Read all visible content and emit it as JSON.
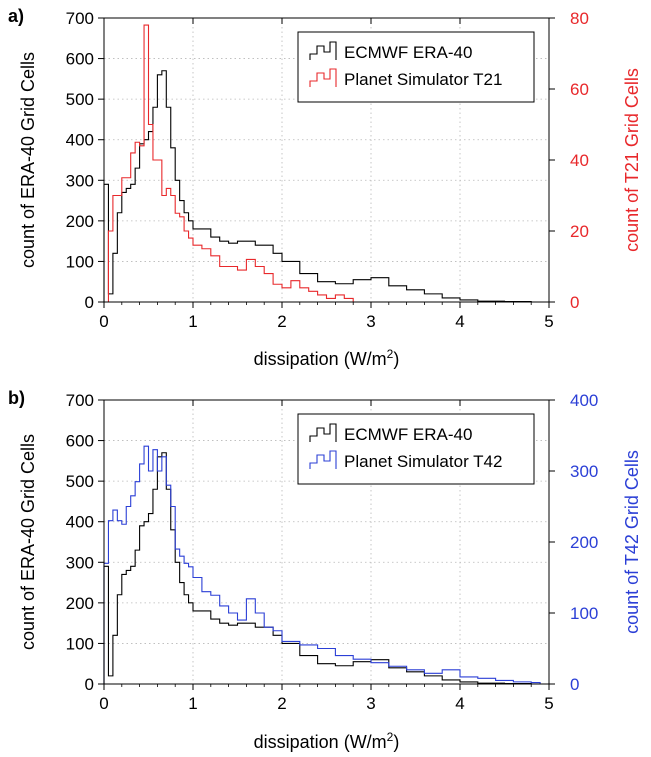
{
  "chart_data": [
    {
      "panel_label": "a)",
      "type": "line",
      "style": "step histogram",
      "xlabel": "dissipation (W/m",
      "xlabel_sup": "2",
      "xlabel_tail": ")",
      "ylabel": "count of ERA-40 Grid Cells",
      "y2label": "count of T21 Grid Cells",
      "xlim": [
        0,
        5
      ],
      "ylim": [
        0,
        700
      ],
      "y2lim": [
        0,
        80
      ],
      "xticks": [
        "0",
        "1",
        "2",
        "3",
        "4",
        "5"
      ],
      "yticks": [
        "0",
        "100",
        "200",
        "300",
        "400",
        "500",
        "600",
        "700"
      ],
      "y2ticks": [
        "0",
        "20",
        "40",
        "60",
        "80"
      ],
      "grid": true,
      "legend_position": "top-right",
      "right_axis_color": "#e8282b",
      "series": [
        {
          "name": "ECMWF ERA-40",
          "axis": "left",
          "color": "#000000",
          "x": [
            0.0,
            0.05,
            0.1,
            0.15,
            0.2,
            0.25,
            0.3,
            0.35,
            0.4,
            0.45,
            0.5,
            0.55,
            0.6,
            0.65,
            0.7,
            0.75,
            0.8,
            0.85,
            0.9,
            0.95,
            1.0,
            1.1,
            1.2,
            1.3,
            1.4,
            1.5,
            1.6,
            1.7,
            1.8,
            1.9,
            2.0,
            2.2,
            2.4,
            2.6,
            2.8,
            3.0,
            3.2,
            3.4,
            3.6,
            3.8,
            4.0,
            4.2,
            4.5,
            4.8
          ],
          "y": [
            290,
            20,
            120,
            220,
            270,
            280,
            290,
            330,
            390,
            400,
            420,
            480,
            560,
            570,
            480,
            380,
            300,
            250,
            220,
            200,
            180,
            180,
            160,
            150,
            145,
            150,
            150,
            140,
            140,
            120,
            100,
            70,
            50,
            45,
            55,
            60,
            40,
            30,
            20,
            10,
            5,
            2,
            1,
            0
          ]
        },
        {
          "name": "Planet Simulator T21",
          "axis": "right",
          "color": "#e8282b",
          "x": [
            0.0,
            0.05,
            0.1,
            0.15,
            0.2,
            0.25,
            0.3,
            0.35,
            0.4,
            0.45,
            0.5,
            0.55,
            0.6,
            0.65,
            0.7,
            0.75,
            0.8,
            0.85,
            0.9,
            0.95,
            1.0,
            1.1,
            1.2,
            1.3,
            1.4,
            1.5,
            1.6,
            1.7,
            1.8,
            1.9,
            2.0,
            2.1,
            2.2,
            2.3,
            2.4,
            2.5,
            2.6,
            2.7,
            2.8
          ],
          "y": [
            0,
            20,
            30,
            30,
            35,
            35,
            42,
            45,
            44,
            78,
            50,
            40,
            40,
            30,
            32,
            30,
            25,
            24,
            20,
            18,
            16,
            15,
            13,
            10,
            10,
            9,
            12,
            10,
            8,
            5,
            4,
            6,
            4,
            3,
            2,
            1,
            2,
            1,
            0
          ]
        }
      ]
    },
    {
      "panel_label": "b)",
      "type": "line",
      "style": "step histogram",
      "xlabel": "dissipation (W/m",
      "xlabel_sup": "2",
      "xlabel_tail": ")",
      "ylabel": "count of ERA-40 Grid Cells",
      "y2label": "count of T42 Grid Cells",
      "xlim": [
        0,
        5
      ],
      "ylim": [
        0,
        700
      ],
      "y2lim": [
        0,
        400
      ],
      "xticks": [
        "0",
        "1",
        "2",
        "3",
        "4",
        "5"
      ],
      "yticks": [
        "0",
        "100",
        "200",
        "300",
        "400",
        "500",
        "600",
        "700"
      ],
      "y2ticks": [
        "0",
        "100",
        "200",
        "300",
        "400"
      ],
      "grid": true,
      "legend_position": "top-right",
      "right_axis_color": "#2b3fd6",
      "series": [
        {
          "name": "ECMWF ERA-40",
          "axis": "left",
          "color": "#000000",
          "x": [
            0.0,
            0.05,
            0.1,
            0.15,
            0.2,
            0.25,
            0.3,
            0.35,
            0.4,
            0.45,
            0.5,
            0.55,
            0.6,
            0.65,
            0.7,
            0.75,
            0.8,
            0.85,
            0.9,
            0.95,
            1.0,
            1.1,
            1.2,
            1.3,
            1.4,
            1.5,
            1.6,
            1.7,
            1.8,
            1.9,
            2.0,
            2.2,
            2.4,
            2.6,
            2.8,
            3.0,
            3.2,
            3.4,
            3.6,
            3.8,
            4.0,
            4.2,
            4.5,
            4.8
          ],
          "y": [
            290,
            20,
            120,
            220,
            270,
            280,
            290,
            330,
            390,
            400,
            420,
            480,
            560,
            570,
            480,
            380,
            300,
            250,
            220,
            200,
            180,
            180,
            160,
            150,
            145,
            150,
            150,
            140,
            140,
            120,
            100,
            70,
            50,
            45,
            55,
            60,
            40,
            30,
            20,
            10,
            5,
            2,
            1,
            0
          ]
        },
        {
          "name": "Planet Simulator T42",
          "axis": "right",
          "color": "#2b3fd6",
          "x": [
            0.0,
            0.05,
            0.1,
            0.15,
            0.2,
            0.25,
            0.3,
            0.35,
            0.4,
            0.45,
            0.5,
            0.55,
            0.6,
            0.65,
            0.7,
            0.75,
            0.8,
            0.85,
            0.9,
            0.95,
            1.0,
            1.1,
            1.2,
            1.3,
            1.4,
            1.5,
            1.6,
            1.7,
            1.8,
            1.9,
            2.0,
            2.2,
            2.4,
            2.6,
            2.8,
            3.0,
            3.2,
            3.4,
            3.6,
            3.8,
            4.0,
            4.2,
            4.4,
            4.6,
            4.8
          ],
          "y": [
            170,
            230,
            245,
            230,
            225,
            250,
            265,
            285,
            310,
            335,
            300,
            330,
            300,
            320,
            280,
            250,
            190,
            180,
            170,
            165,
            150,
            130,
            125,
            110,
            100,
            90,
            120,
            100,
            80,
            75,
            60,
            55,
            50,
            40,
            35,
            30,
            25,
            20,
            15,
            20,
            10,
            8,
            5,
            3,
            2
          ]
        }
      ]
    }
  ]
}
